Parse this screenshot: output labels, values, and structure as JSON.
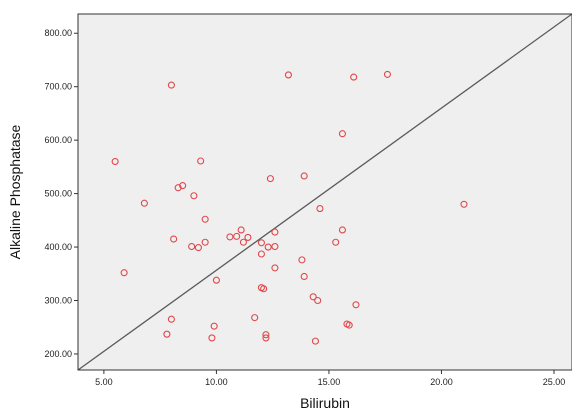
{
  "chart_data": {
    "type": "scatter",
    "title": "",
    "xlabel": "Bilirubin",
    "ylabel": "Alkaline Phosphatase",
    "xlim": [
      3.85,
      25.8
    ],
    "ylim": [
      170,
      836
    ],
    "xticks": [
      "5.00",
      "10.00",
      "15.00",
      "20.00",
      "25.00"
    ],
    "xtick_values": [
      5,
      10,
      15,
      20,
      25
    ],
    "yticks": [
      "200.00",
      "300.00",
      "400.00",
      "500.00",
      "600.00",
      "700.00",
      "800.00"
    ],
    "ytick_values": [
      200,
      300,
      400,
      500,
      600,
      700,
      800
    ],
    "grid": false,
    "legend": "none",
    "colors": {
      "plot_background": "#efefef",
      "marker": "#e0474c",
      "fit_line": "#5a5a5a",
      "frame": "#333333"
    },
    "series": [
      {
        "marker": "open-circle",
        "points": [
          [
            5.5,
            560
          ],
          [
            5.9,
            352
          ],
          [
            6.8,
            482
          ],
          [
            7.8,
            237
          ],
          [
            8.0,
            265
          ],
          [
            8.0,
            703
          ],
          [
            8.1,
            415
          ],
          [
            8.3,
            511
          ],
          [
            8.5,
            515
          ],
          [
            8.9,
            401
          ],
          [
            9.0,
            496
          ],
          [
            9.2,
            399
          ],
          [
            9.3,
            561
          ],
          [
            9.5,
            409
          ],
          [
            9.5,
            452
          ],
          [
            9.8,
            230
          ],
          [
            9.9,
            252
          ],
          [
            10.0,
            338
          ],
          [
            10.6,
            419
          ],
          [
            10.9,
            420
          ],
          [
            11.1,
            432
          ],
          [
            11.2,
            409
          ],
          [
            11.4,
            418
          ],
          [
            11.7,
            268
          ],
          [
            12.0,
            408
          ],
          [
            12.0,
            387
          ],
          [
            12.0,
            324
          ],
          [
            12.1,
            322
          ],
          [
            12.2,
            236
          ],
          [
            12.2,
            230
          ],
          [
            12.3,
            400
          ],
          [
            12.4,
            528
          ],
          [
            12.6,
            428
          ],
          [
            12.6,
            401
          ],
          [
            12.6,
            361
          ],
          [
            13.2,
            722
          ],
          [
            13.8,
            376
          ],
          [
            13.9,
            533
          ],
          [
            13.9,
            345
          ],
          [
            14.3,
            307
          ],
          [
            14.4,
            224
          ],
          [
            14.5,
            300
          ],
          [
            14.6,
            472
          ],
          [
            15.3,
            409
          ],
          [
            15.6,
            432
          ],
          [
            15.6,
            612
          ],
          [
            15.8,
            256
          ],
          [
            15.9,
            254
          ],
          [
            16.1,
            718
          ],
          [
            16.2,
            292
          ],
          [
            17.6,
            723
          ],
          [
            21.0,
            480
          ]
        ]
      }
    ],
    "fit_line": {
      "x": [
        3.85,
        25.8
      ],
      "y": [
        170,
        836
      ]
    }
  }
}
